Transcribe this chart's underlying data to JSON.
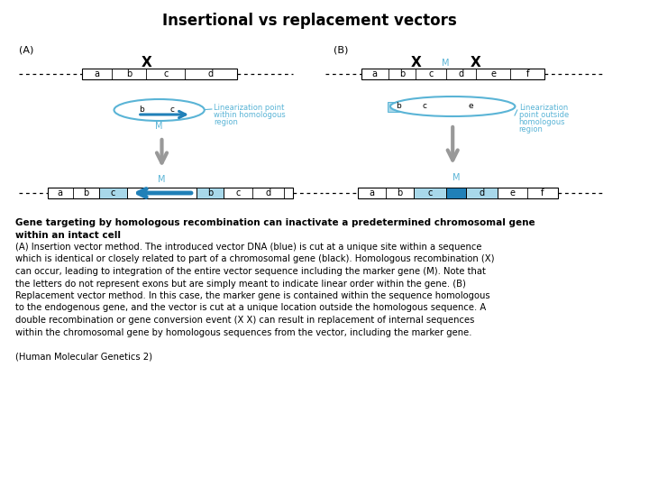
{
  "title": "Insertional vs replacement vectors",
  "title_fontsize": 12,
  "background_color": "#ffffff",
  "light_blue": "#a8d8ea",
  "mid_blue": "#5ab4d6",
  "dark_blue": "#2080b8",
  "text_color": "#000000",
  "annotation_color": "#5ab4d6",
  "body_bold1": "Gene targeting by homologous recombination can inactivate a predetermined chromosomal gene",
  "body_bold2": "within an intact cell",
  "body_lines": [
    "(A) Insertion vector method. The introduced vector DNA (blue) is cut at a unique site within a sequence",
    "which is identical or closely related to part of a chromosomal gene (black). Homologous recombination (X)",
    "can occur, leading to integration of the entire vector sequence including the marker gene (M). Note that",
    "the letters do not represent exons but are simply meant to indicate linear order within the gene. (B)",
    "Replacement vector method. In this case, the marker gene is contained within the sequence homologous",
    "to the endogenous gene, and the vector is cut at a unique location outside the homologous sequence. A",
    "double recombination or gene conversion event (X X) can result in replacement of internal sequences",
    "within the chromosomal gene by homologous sequences from the vector, including the marker gene."
  ],
  "citation": "(Human Molecular Genetics 2)"
}
